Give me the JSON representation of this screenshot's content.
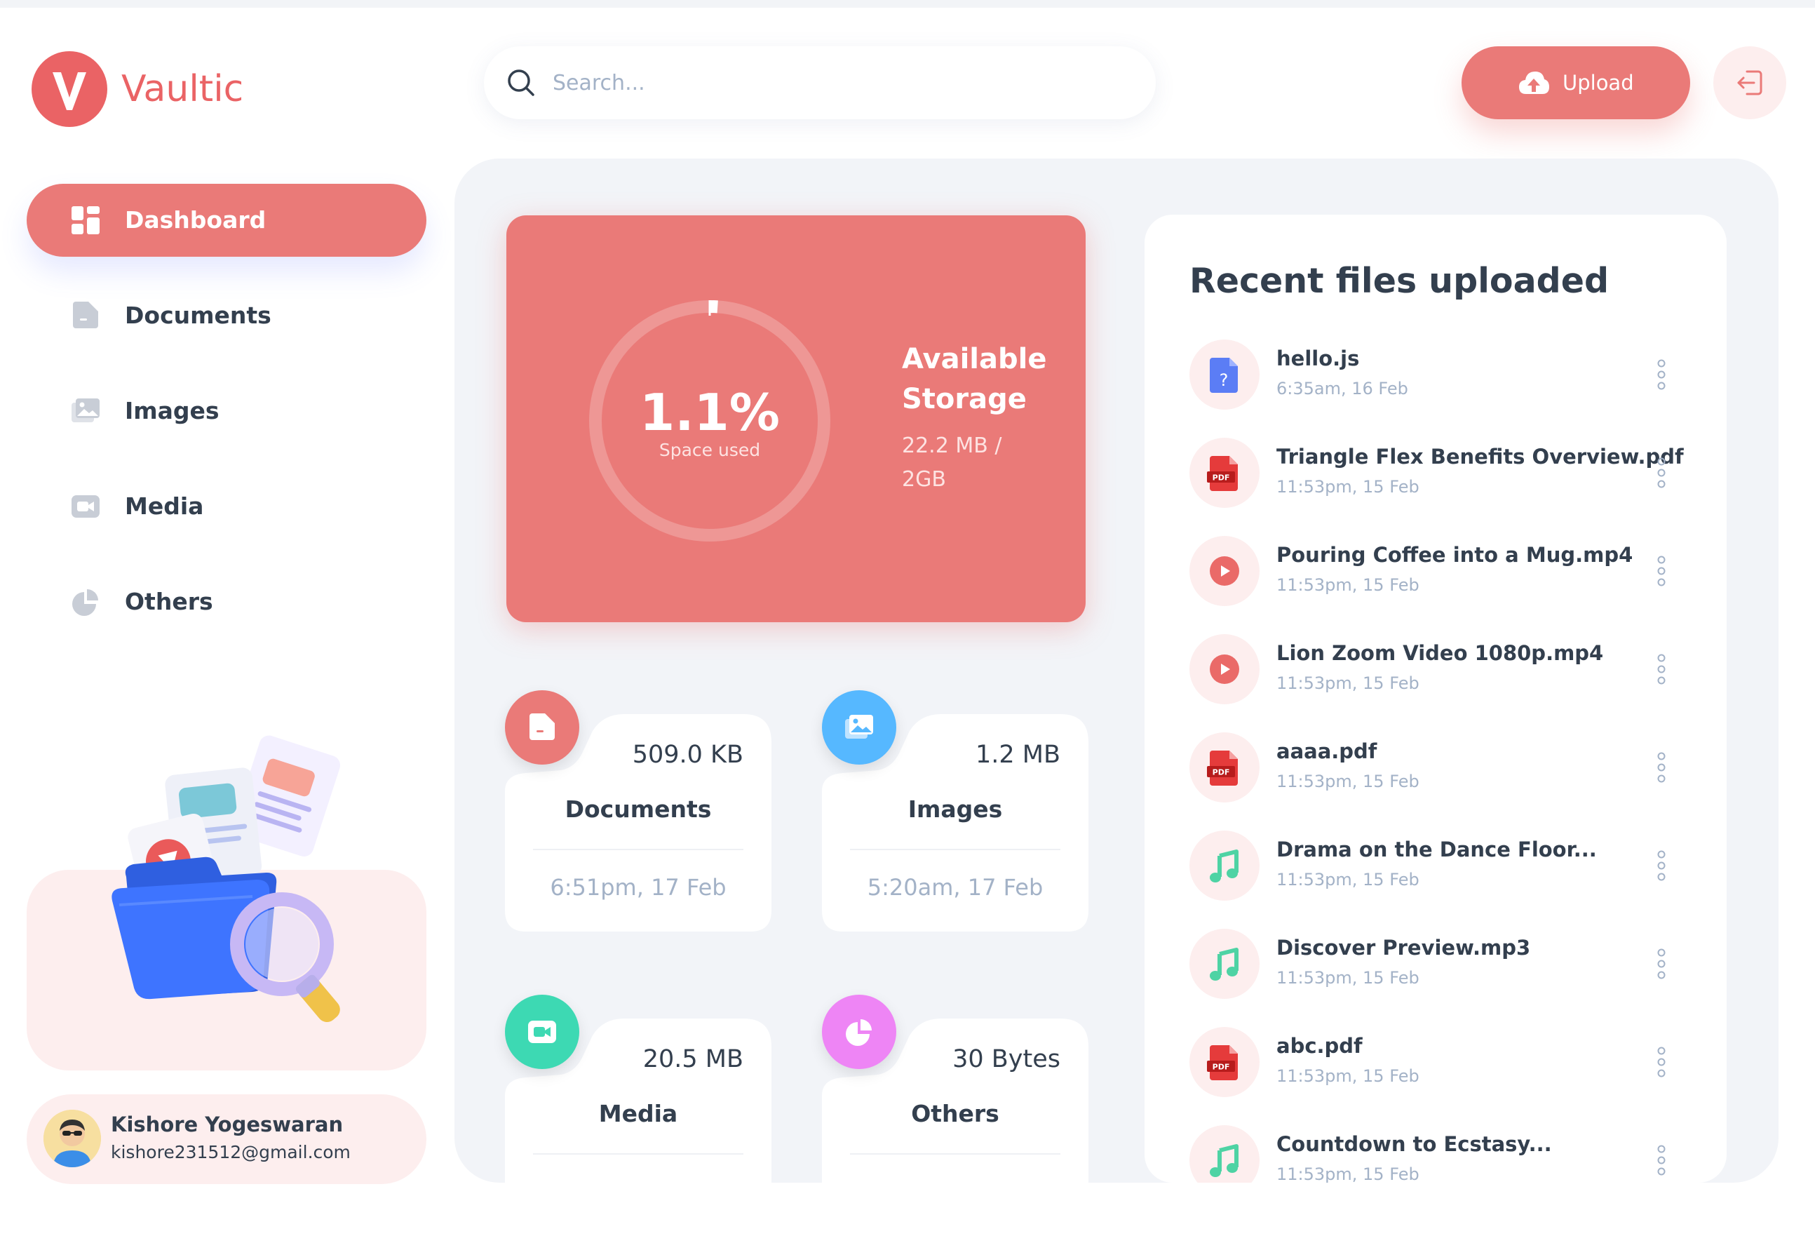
{
  "brand": {
    "name": "Vaultic",
    "accent": "#ea6365"
  },
  "search": {
    "placeholder": "Search...",
    "value": ""
  },
  "header": {
    "upload_label": "Upload"
  },
  "sidebar": {
    "items": [
      {
        "label": "Dashboard",
        "icon": "dashboard-icon",
        "active": true
      },
      {
        "label": "Documents",
        "icon": "document-icon"
      },
      {
        "label": "Images",
        "icon": "images-icon"
      },
      {
        "label": "Media",
        "icon": "video-icon"
      },
      {
        "label": "Others",
        "icon": "pie-icon"
      }
    ]
  },
  "user": {
    "name": "Kishore Yogeswaran",
    "email": "kishore231512@gmail.com"
  },
  "storage": {
    "percent_label": "1.1%",
    "percent_value": 0.011,
    "sub_label": "Space used",
    "title": "Available Storage",
    "value": "22.2 MB / 2GB"
  },
  "summary": [
    {
      "title": "Documents",
      "size": "509.0 KB",
      "date": "6:51pm, 17 Feb",
      "icon": "document-icon",
      "color": "#ea7a78"
    },
    {
      "title": "Images",
      "size": "1.2 MB",
      "date": "5:20am, 17 Feb",
      "icon": "images-icon",
      "color": "#56b8ff"
    },
    {
      "title": "Media",
      "size": "20.5 MB",
      "date": "",
      "icon": "video-icon",
      "color": "#3dd9b3"
    },
    {
      "title": "Others",
      "size": "30 Bytes",
      "date": "",
      "icon": "pie-icon",
      "color": "#ee85f5"
    }
  ],
  "recent": {
    "title": "Recent files uploaded",
    "files": [
      {
        "name": "hello.js",
        "time": "6:35am, 16 Feb",
        "type": "unknown"
      },
      {
        "name": "Triangle Flex Benefits Overview.pdf",
        "time": "11:53pm, 15 Feb",
        "type": "pdf"
      },
      {
        "name": "Pouring Coffee into a Mug.mp4",
        "time": "11:53pm, 15 Feb",
        "type": "video"
      },
      {
        "name": "Lion Zoom Video 1080p.mp4",
        "time": "11:53pm, 15 Feb",
        "type": "video"
      },
      {
        "name": "aaaa.pdf",
        "time": "11:53pm, 15 Feb",
        "type": "pdf"
      },
      {
        "name": "Drama on the Dance Floor...",
        "time": "11:53pm, 15 Feb",
        "type": "audio"
      },
      {
        "name": "Discover Preview.mp3",
        "time": "11:53pm, 15 Feb",
        "type": "audio"
      },
      {
        "name": "abc.pdf",
        "time": "11:53pm, 15 Feb",
        "type": "pdf"
      },
      {
        "name": "Countdown to Ecstasy...",
        "time": "11:53pm, 15 Feb",
        "type": "audio"
      }
    ]
  }
}
